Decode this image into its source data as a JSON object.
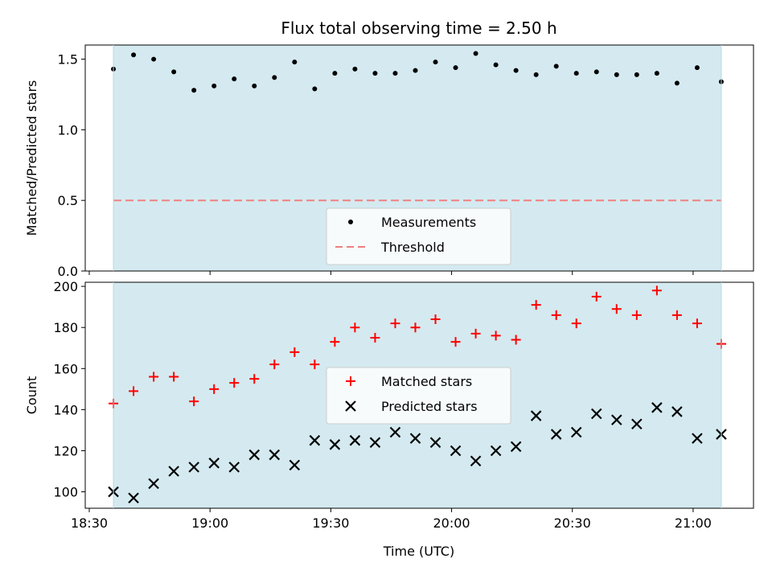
{
  "chart_data": {
    "title": "Flux total observing time = 2.50 h",
    "xlabel": "Time (UTC)",
    "x_ticks": [
      "18:30",
      "19:00",
      "19:30",
      "20:00",
      "20:30",
      "21:00"
    ],
    "x_tick_minutes": [
      1110,
      1140,
      1170,
      1200,
      1230,
      1260
    ],
    "xlim_minutes": [
      1109,
      1275
    ],
    "shaded_span_minutes": [
      1116,
      1267
    ],
    "shade_color": "#d4eaf0",
    "times_minutes": [
      1116,
      1121,
      1126,
      1131,
      1136,
      1141,
      1146,
      1151,
      1156,
      1161,
      1166,
      1171,
      1176,
      1181,
      1186,
      1191,
      1196,
      1201,
      1206,
      1211,
      1216,
      1221,
      1226,
      1231,
      1236,
      1241,
      1246,
      1251,
      1256,
      1261,
      1267
    ],
    "panels": [
      {
        "type": "scatter",
        "ylabel": "Matched/Predicted stars",
        "ylim": [
          0,
          1.6
        ],
        "y_ticks": [
          "0.0",
          "0.5",
          "1.0",
          "1.5"
        ],
        "y_tick_values": [
          0,
          0.5,
          1.0,
          1.5
        ],
        "series": [
          {
            "name": "Measurements",
            "marker": "dot",
            "color": "#000000",
            "values": [
              1.43,
              1.53,
              1.5,
              1.41,
              1.28,
              1.31,
              1.36,
              1.31,
              1.37,
              1.48,
              1.29,
              1.4,
              1.43,
              1.4,
              1.4,
              1.42,
              1.48,
              1.44,
              1.54,
              1.46,
              1.42,
              1.39,
              1.45,
              1.4,
              1.41,
              1.39,
              1.39,
              1.4,
              1.33,
              1.44,
              1.34
            ]
          }
        ],
        "threshold": {
          "name": "Threshold",
          "value": 0.5,
          "color": "#f08080"
        }
      },
      {
        "type": "scatter",
        "ylabel": "Count",
        "ylim": [
          92,
          202
        ],
        "y_ticks": [
          "100",
          "120",
          "140",
          "160",
          "180",
          "200"
        ],
        "y_tick_values": [
          100,
          120,
          140,
          160,
          180,
          200
        ],
        "series": [
          {
            "name": "Matched stars",
            "marker": "plus",
            "color": "#ff0000",
            "values": [
              143,
              149,
              156,
              156,
              144,
              150,
              153,
              155,
              162,
              168,
              162,
              173,
              180,
              175,
              182,
              180,
              184,
              173,
              177,
              176,
              174,
              191,
              186,
              182,
              195,
              189,
              186,
              198,
              186,
              182,
              172
            ]
          },
          {
            "name": "Predicted stars",
            "marker": "x",
            "color": "#000000",
            "values": [
              100,
              97,
              104,
              110,
              112,
              114,
              112,
              118,
              118,
              113,
              125,
              123,
              125,
              124,
              129,
              126,
              124,
              120,
              115,
              120,
              122,
              137,
              128,
              129,
              138,
              135,
              133,
              141,
              139,
              126,
              128
            ]
          }
        ]
      }
    ]
  }
}
